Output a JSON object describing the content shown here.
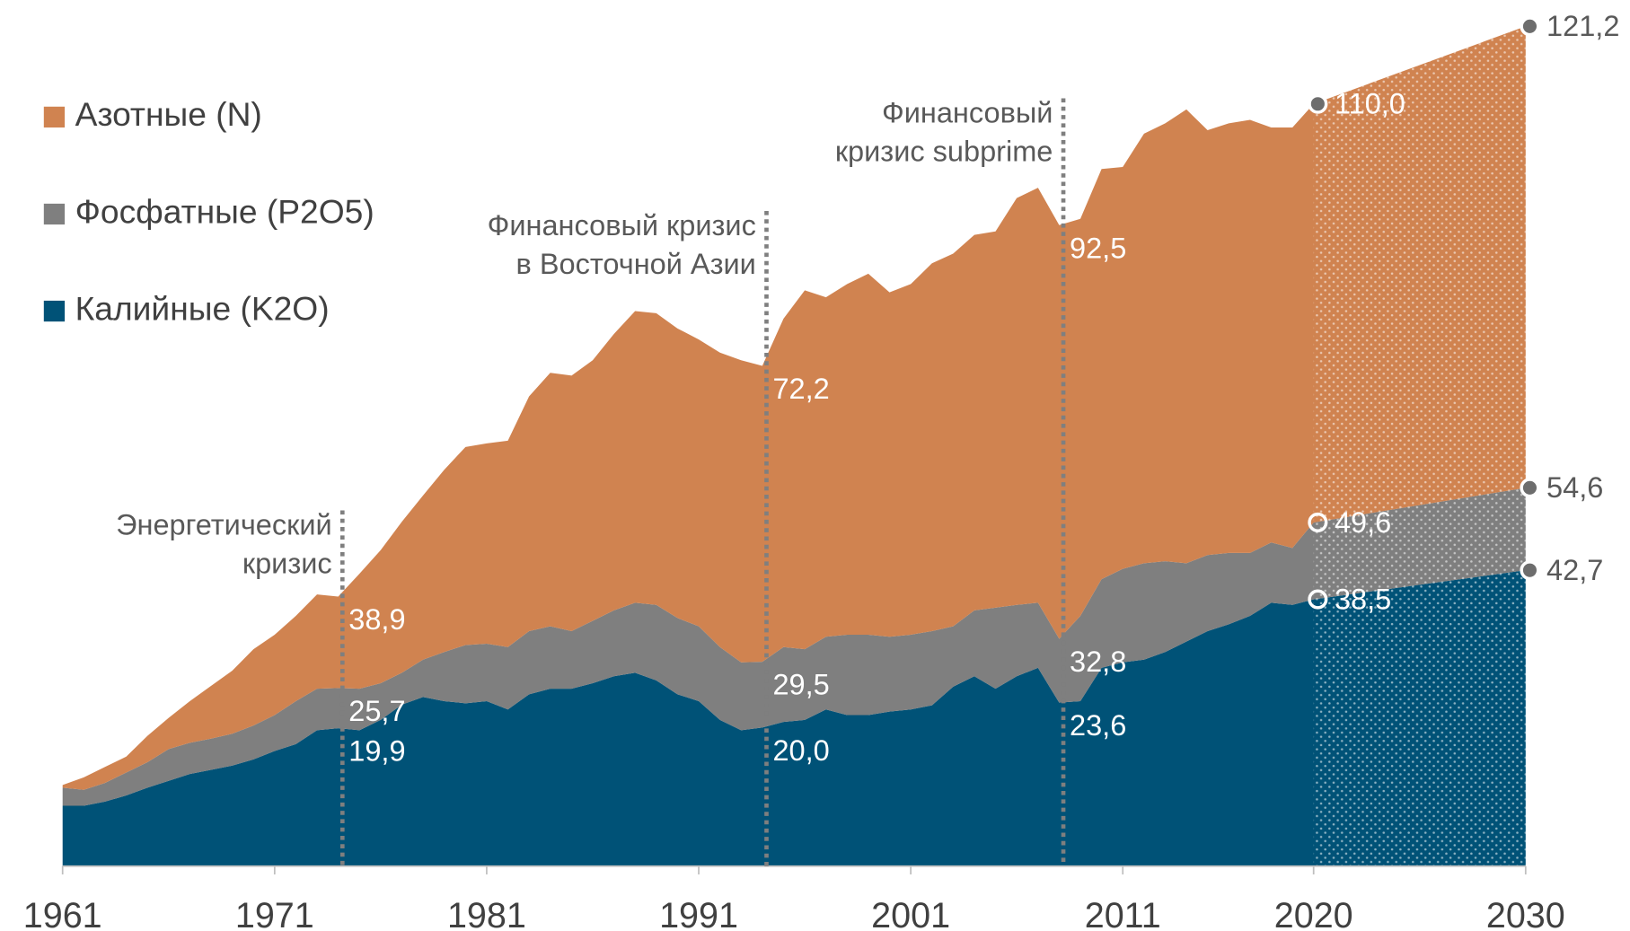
{
  "chart_data": {
    "type": "stacked_area",
    "x": [
      1961,
      1962,
      1963,
      1964,
      1965,
      1966,
      1967,
      1968,
      1969,
      1970,
      1971,
      1972,
      1973,
      1974,
      1975,
      1976,
      1977,
      1978,
      1979,
      1980,
      1981,
      1982,
      1983,
      1984,
      1985,
      1986,
      1987,
      1988,
      1989,
      1990,
      1991,
      1992,
      1993,
      1994,
      1995,
      1996,
      1997,
      1998,
      1999,
      2000,
      2001,
      2002,
      2003,
      2004,
      2005,
      2006,
      2007,
      2008,
      2009,
      2010,
      2011,
      2012,
      2013,
      2014,
      2015,
      2016,
      2017,
      2018,
      2019,
      2020,
      2030
    ],
    "xlim": [
      1961,
      2030
    ],
    "xticks": [
      1961,
      1971,
      1981,
      1991,
      2001,
      2011,
      2020,
      2030
    ],
    "series": [
      {
        "name": "Азотные (N)",
        "color": "#d08350",
        "values": [
          0.4,
          1.8,
          2.3,
          2.3,
          3.8,
          4.5,
          6.0,
          7.6,
          9.1,
          11.0,
          11.6,
          12.3,
          13.6,
          13.2,
          16.6,
          19.2,
          21.8,
          23.7,
          26.3,
          28.6,
          28.9,
          29.8,
          33.9,
          36.6,
          36.9,
          37.6,
          39.9,
          42.1,
          42.1,
          41.8,
          41.4,
          42.5,
          43.6,
          42.7,
          47.4,
          51.8,
          49.0,
          50.6,
          52.1,
          49.7,
          50.6,
          53.1,
          53.8,
          54.2,
          54.3,
          58.7,
          59.9,
          59.7,
          57.3,
          59.2,
          58.0,
          62.0,
          63.2,
          65.5,
          61.3,
          62.0,
          62.5,
          59.9,
          60.7,
          60.4,
          66.6
        ]
      },
      {
        "name": "Фосфатные (P2O5)",
        "color": "#7f7f7f",
        "values": [
          2.6,
          2.3,
          2.7,
          3.3,
          3.7,
          4.6,
          4.5,
          4.5,
          4.6,
          4.9,
          5.2,
          6.2,
          6.0,
          5.8,
          6.0,
          5.3,
          4.6,
          5.4,
          7.1,
          8.4,
          8.3,
          9.0,
          9.1,
          9.0,
          8.3,
          9.0,
          9.5,
          10.1,
          10.9,
          11.0,
          10.8,
          10.5,
          9.8,
          9.5,
          10.8,
          10.2,
          10.5,
          11.6,
          11.6,
          10.8,
          10.8,
          10.7,
          8.7,
          9.5,
          11.7,
          10.3,
          9.4,
          9.2,
          12.3,
          12.8,
          13.5,
          13.9,
          13.1,
          11.3,
          11.0,
          10.3,
          9.1,
          8.7,
          8.2,
          11.1,
          11.9
        ]
      },
      {
        "name": "Калийные (K2O)",
        "color": "#005277",
        "values": [
          8.7,
          8.7,
          9.3,
          10.2,
          11.3,
          12.3,
          13.3,
          13.9,
          14.5,
          15.4,
          16.6,
          17.6,
          19.6,
          19.9,
          19.6,
          21.1,
          23.3,
          24.4,
          23.8,
          23.5,
          23.8,
          22.6,
          24.8,
          25.6,
          25.6,
          26.4,
          27.4,
          27.9,
          26.8,
          24.8,
          23.8,
          21.1,
          19.6,
          20.0,
          20.8,
          21.1,
          22.6,
          21.8,
          21.8,
          22.3,
          22.6,
          23.2,
          25.9,
          27.4,
          25.6,
          27.4,
          28.6,
          23.6,
          23.8,
          28.6,
          29.4,
          29.8,
          30.9,
          32.4,
          33.9,
          34.9,
          36.1,
          38.0,
          37.7,
          38.5,
          42.7
        ]
      }
    ],
    "legend": "top-left",
    "events": [
      {
        "x": 1974,
        "lines": [
          "Энергетический",
          "кризис"
        ]
      },
      {
        "x": 1994,
        "lines": [
          "Финансовый кризис",
          "в Восточной Азии"
        ]
      },
      {
        "x": 2008,
        "lines": [
          "Финансовый",
          "кризис  subprime"
        ]
      }
    ],
    "annotations": [
      {
        "x": 1974,
        "value": 38.9,
        "label": "38,9",
        "color": "#ffffff"
      },
      {
        "x": 1974,
        "value": 25.7,
        "label": "25,7",
        "color": "#ffffff"
      },
      {
        "x": 1974,
        "value": 19.9,
        "label": "19,9",
        "color": "#ffffff"
      },
      {
        "x": 1994,
        "value": 72.2,
        "label": "72,2",
        "color": "#ffffff"
      },
      {
        "x": 1994,
        "value": 29.5,
        "label": "29,5",
        "color": "#ffffff"
      },
      {
        "x": 1994,
        "value": 20.0,
        "label": "20,0",
        "color": "#ffffff"
      },
      {
        "x": 2008,
        "value": 92.5,
        "label": "92,5",
        "color": "#ffffff"
      },
      {
        "x": 2008,
        "value": 32.8,
        "label": "32,8",
        "color": "#ffffff"
      },
      {
        "x": 2008,
        "value": 23.6,
        "label": "23,6",
        "color": "#ffffff"
      },
      {
        "x": 2020,
        "value": 110.0,
        "label": "110,0",
        "color": "#ffffff",
        "marker": "filled"
      },
      {
        "x": 2020,
        "value": 49.6,
        "label": "49,6",
        "color": "#ffffff",
        "marker": "open"
      },
      {
        "x": 2020,
        "value": 38.5,
        "label": "38,5",
        "color": "#ffffff",
        "marker": "open"
      },
      {
        "x": 2030,
        "value": 121.2,
        "label": "121,2",
        "color": "#595959",
        "marker": "filled"
      },
      {
        "x": 2030,
        "value": 54.6,
        "label": "54,6",
        "color": "#595959",
        "marker": "filled"
      },
      {
        "x": 2030,
        "value": 42.7,
        "label": "42,7",
        "color": "#595959",
        "marker": "filled"
      }
    ]
  }
}
